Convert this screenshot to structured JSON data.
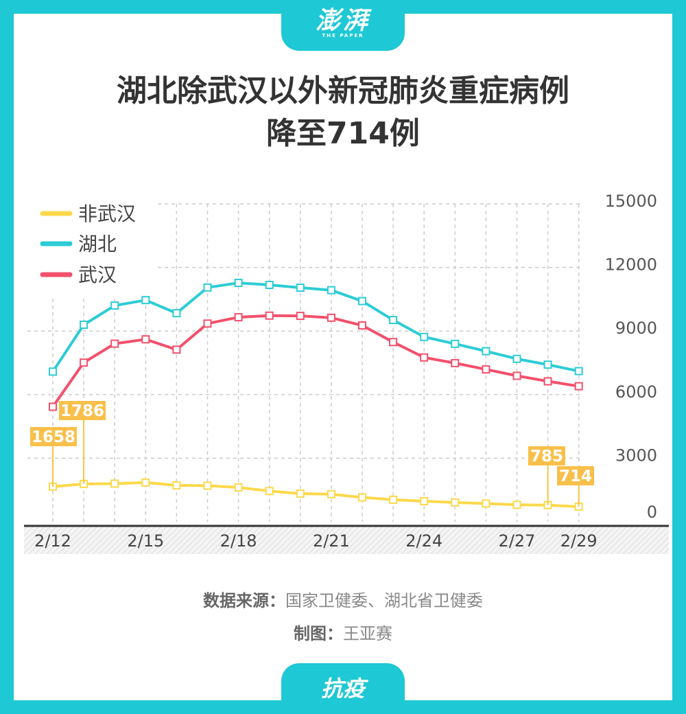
{
  "header": {
    "logo": "澎湃",
    "logo_sub": "THE PAPER",
    "title_line1": "湖北除武汉以外新冠肺炎重症病例",
    "title_line2": "降至714例"
  },
  "chart_data": {
    "type": "line",
    "x": [
      "2/12",
      "2/13",
      "2/14",
      "2/15",
      "2/16",
      "2/17",
      "2/18",
      "2/19",
      "2/20",
      "2/21",
      "2/22",
      "2/23",
      "2/24",
      "2/25",
      "2/26",
      "2/27",
      "2/28",
      "2/29"
    ],
    "x_tick_labels": [
      "2/12",
      "2/15",
      "2/18",
      "2/21",
      "2/24",
      "2/27",
      "2/29"
    ],
    "y_ticks": [
      0,
      3000,
      6000,
      9000,
      12000,
      15000
    ],
    "ylim": [
      0,
      15000
    ],
    "y_axis_side": "right",
    "grid": true,
    "legend_position": "top-left",
    "series": [
      {
        "name": "非武汉",
        "color": "#fcd94b",
        "values": [
          1658,
          1786,
          1800,
          1850,
          1720,
          1700,
          1620,
          1450,
          1330,
          1300,
          1150,
          1040,
          970,
          910,
          860,
          800,
          785,
          714
        ]
      },
      {
        "name": "湖北",
        "color": "#2cccd6",
        "values": [
          7084,
          9298,
          10204,
          10459,
          9843,
          11053,
          11272,
          11178,
          11046,
          10928,
          10414,
          9520,
          8723,
          8397,
          8049,
          7688,
          7414,
          7110
        ]
      },
      {
        "name": "武汉",
        "color": "#f2506b",
        "values": [
          5426,
          7512,
          8404,
          8609,
          8123,
          9353,
          9652,
          9728,
          9716,
          9628,
          9264,
          8480,
          7753,
          7487,
          7189,
          6888,
          6629,
          6396
        ]
      }
    ],
    "annotations": [
      {
        "series": "非武汉",
        "x": "2/12",
        "label": "1658"
      },
      {
        "series": "非武汉",
        "x": "2/13",
        "label": "1786"
      },
      {
        "series": "非武汉",
        "x": "2/28",
        "label": "785"
      },
      {
        "series": "非武汉",
        "x": "2/29",
        "label": "714"
      }
    ]
  },
  "footer": {
    "source_label": "数据来源：",
    "source_value": "国家卫健委、湖北省卫健委",
    "author_label": "制图：",
    "author_value": "王亚赛",
    "tag": "抗疫"
  }
}
